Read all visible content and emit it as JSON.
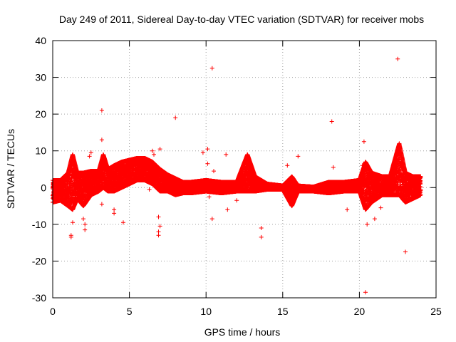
{
  "chart_data": {
    "type": "scatter",
    "title": "Day 249 of 2011, Sidereal Day-to-day VTEC variation (SDTVAR) for receiver mobs",
    "xlabel": "GPS time / hours",
    "ylabel": "SDTVAR / TECUs",
    "xlim": [
      0,
      25
    ],
    "ylim": [
      -30,
      40
    ],
    "xticks": [
      0,
      5,
      10,
      15,
      20,
      25
    ],
    "yticks": [
      -30,
      -20,
      -10,
      0,
      10,
      20,
      30,
      40
    ],
    "grid": true,
    "marker": "+",
    "color": "#ff0000",
    "series": [
      {
        "name": "SDTVAR",
        "dense_band": [
          {
            "x": 0.0,
            "low": -4,
            "high": 2
          },
          {
            "x": 0.5,
            "low": -3.5,
            "high": 2
          },
          {
            "x": 1.0,
            "low": -5,
            "high": 4
          },
          {
            "x": 1.3,
            "low": -6,
            "high": 9
          },
          {
            "x": 1.6,
            "low": -3,
            "high": 4
          },
          {
            "x": 2.0,
            "low": -5,
            "high": 4
          },
          {
            "x": 2.5,
            "low": -2,
            "high": 4.5
          },
          {
            "x": 3.0,
            "low": -1,
            "high": 4.5
          },
          {
            "x": 3.3,
            "low": 0,
            "high": 9
          },
          {
            "x": 3.6,
            "low": -1,
            "high": 5
          },
          {
            "x": 4.0,
            "low": -1,
            "high": 6
          },
          {
            "x": 4.5,
            "low": 0,
            "high": 7
          },
          {
            "x": 5.0,
            "low": 1,
            "high": 7.5
          },
          {
            "x": 5.5,
            "low": 2,
            "high": 8
          },
          {
            "x": 6.0,
            "low": 2,
            "high": 8
          },
          {
            "x": 6.5,
            "low": 1,
            "high": 7
          },
          {
            "x": 7.0,
            "low": -1,
            "high": 5
          },
          {
            "x": 7.5,
            "low": -1,
            "high": 3.5
          },
          {
            "x": 8.0,
            "low": -2,
            "high": 2.5
          },
          {
            "x": 8.5,
            "low": -1.5,
            "high": 1.5
          },
          {
            "x": 9.0,
            "low": -1.5,
            "high": 1.5
          },
          {
            "x": 10.0,
            "low": -1,
            "high": 2
          },
          {
            "x": 11.0,
            "low": -1.5,
            "high": 1.5
          },
          {
            "x": 12.0,
            "low": -1,
            "high": 1.5
          },
          {
            "x": 12.7,
            "low": -1,
            "high": 9
          },
          {
            "x": 13.2,
            "low": -1,
            "high": 3
          },
          {
            "x": 14.0,
            "low": -0.5,
            "high": 1
          },
          {
            "x": 15.0,
            "low": -0.5,
            "high": 0.5
          },
          {
            "x": 15.6,
            "low": -5,
            "high": 3
          },
          {
            "x": 16.0,
            "low": -1,
            "high": 0.5
          },
          {
            "x": 17.0,
            "low": -1,
            "high": 0.2
          },
          {
            "x": 18.0,
            "low": -1.5,
            "high": 1.5
          },
          {
            "x": 19.0,
            "low": -1,
            "high": 1.5
          },
          {
            "x": 20.0,
            "low": -1,
            "high": 2
          },
          {
            "x": 20.4,
            "low": -6,
            "high": 7
          },
          {
            "x": 20.8,
            "low": -4,
            "high": 4
          },
          {
            "x": 21.5,
            "low": -2,
            "high": 3
          },
          {
            "x": 22.0,
            "low": -2,
            "high": 3
          },
          {
            "x": 22.6,
            "low": -2,
            "high": 12
          },
          {
            "x": 23.0,
            "low": -4,
            "high": 4
          },
          {
            "x": 23.5,
            "low": -3,
            "high": 3
          },
          {
            "x": 24.0,
            "low": -2,
            "high": 3
          }
        ],
        "outliers": [
          {
            "x": 1.2,
            "y": -13.5
          },
          {
            "x": 1.2,
            "y": -13
          },
          {
            "x": 1.3,
            "y": -9.5
          },
          {
            "x": 2.1,
            "y": -11.5
          },
          {
            "x": 2.1,
            "y": -10
          },
          {
            "x": 2.0,
            "y": -8.5
          },
          {
            "x": 2.4,
            "y": 8.5
          },
          {
            "x": 2.5,
            "y": 9.5
          },
          {
            "x": 3.2,
            "y": 21
          },
          {
            "x": 3.2,
            "y": 13
          },
          {
            "x": 3.2,
            "y": -4.5
          },
          {
            "x": 4.0,
            "y": -6
          },
          {
            "x": 4.0,
            "y": -7
          },
          {
            "x": 4.6,
            "y": -9.5
          },
          {
            "x": 6.3,
            "y": -0.5
          },
          {
            "x": 6.5,
            "y": 10
          },
          {
            "x": 6.6,
            "y": 9
          },
          {
            "x": 6.9,
            "y": -13
          },
          {
            "x": 6.9,
            "y": -12
          },
          {
            "x": 6.9,
            "y": -8
          },
          {
            "x": 7.0,
            "y": -10.5
          },
          {
            "x": 7.0,
            "y": 10.5
          },
          {
            "x": 8.0,
            "y": 19
          },
          {
            "x": 9.8,
            "y": 9.5
          },
          {
            "x": 10.1,
            "y": 10.5
          },
          {
            "x": 10.1,
            "y": 6.5
          },
          {
            "x": 10.2,
            "y": -2.5
          },
          {
            "x": 10.4,
            "y": 32.5
          },
          {
            "x": 10.4,
            "y": -8.5
          },
          {
            "x": 10.5,
            "y": 4.5
          },
          {
            "x": 11.3,
            "y": 9
          },
          {
            "x": 11.4,
            "y": -6
          },
          {
            "x": 12.0,
            "y": -3.5
          },
          {
            "x": 13.6,
            "y": -11
          },
          {
            "x": 13.6,
            "y": -13.5
          },
          {
            "x": 15.3,
            "y": 6
          },
          {
            "x": 16.0,
            "y": 8.5
          },
          {
            "x": 18.2,
            "y": 18
          },
          {
            "x": 18.3,
            "y": 5.5
          },
          {
            "x": 19.2,
            "y": -6
          },
          {
            "x": 20.2,
            "y": 6
          },
          {
            "x": 20.3,
            "y": 12.5
          },
          {
            "x": 20.4,
            "y": -28.5
          },
          {
            "x": 20.5,
            "y": -10
          },
          {
            "x": 21.0,
            "y": -8.5
          },
          {
            "x": 21.4,
            "y": -5.5
          },
          {
            "x": 22.5,
            "y": 35
          },
          {
            "x": 23.0,
            "y": -17.5
          }
        ]
      }
    ]
  }
}
